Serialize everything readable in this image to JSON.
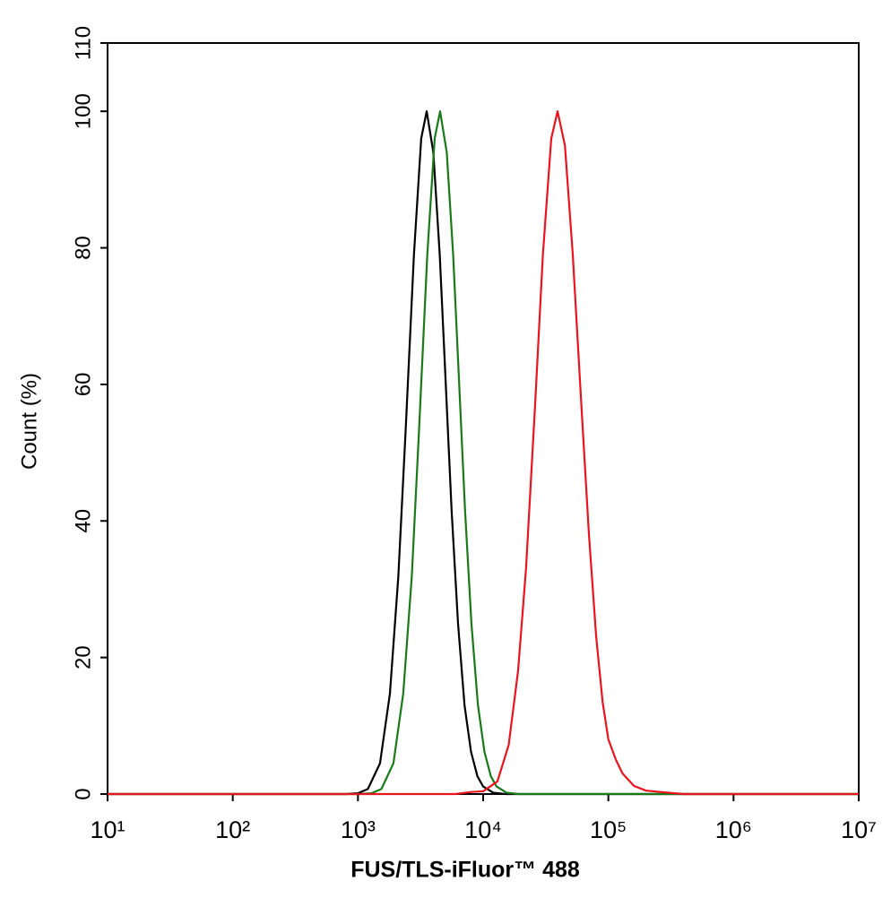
{
  "chart_data": {
    "type": "line",
    "xlabel": "FUS/TLS-iFluor™ 488",
    "ylabel": "Count  (%)",
    "xscale": "log",
    "xlim": [
      10,
      10000000
    ],
    "xticks": [
      {
        "value": 10,
        "label": "10¹"
      },
      {
        "value": 100,
        "label": "10²"
      },
      {
        "value": 1000,
        "label": "10³"
      },
      {
        "value": 10000,
        "label": "10⁴"
      },
      {
        "value": 100000,
        "label": "10⁵"
      },
      {
        "value": 1000000,
        "label": "10⁶"
      },
      {
        "value": 10000000,
        "label": "10⁷"
      }
    ],
    "ylim": [
      0,
      110
    ],
    "yticks": [
      0,
      20,
      40,
      60,
      80,
      100,
      110
    ],
    "grid": false,
    "series": [
      {
        "color": "#000000",
        "x": [
          10,
          800,
          1000,
          1200,
          1500,
          1800,
          2100,
          2400,
          2800,
          3200,
          3540,
          4000,
          4500,
          5000,
          5600,
          6300,
          7100,
          8000,
          9000,
          10000,
          12000,
          15000,
          10000000
        ],
        "values": [
          0,
          0,
          0.12,
          0.74,
          4.5,
          14.7,
          31.8,
          53,
          79,
          96,
          100,
          94,
          79,
          61,
          41.5,
          25,
          13,
          6.2,
          2.6,
          1.1,
          0.2,
          0,
          0
        ]
      },
      {
        "color": "#1a7a1a",
        "x": [
          10,
          1020,
          1280,
          1540,
          1920,
          2300,
          2690,
          3070,
          3580,
          4100,
          4530,
          5120,
          5760,
          6400,
          7170,
          8060,
          9090,
          10240,
          11520,
          12800,
          15360,
          19200,
          10000000
        ],
        "values": [
          0,
          0,
          0.12,
          0.74,
          4.5,
          14.7,
          31.8,
          53,
          79,
          96,
          100,
          94,
          79,
          61,
          41.5,
          25,
          13,
          6.2,
          2.6,
          1.1,
          0.2,
          0,
          0
        ]
      },
      {
        "color": "#e8141e",
        "x": [
          10,
          6000,
          8000,
          10000,
          13000,
          16000,
          19000,
          22000,
          26000,
          30000,
          35000,
          39300,
          45000,
          52000,
          60000,
          70000,
          80000,
          90000,
          100000,
          115000,
          130000,
          160000,
          200000,
          300000,
          400000,
          10000000
        ],
        "values": [
          0,
          0,
          0.3,
          0.4,
          1.85,
          7.2,
          18,
          33,
          57,
          79,
          96,
          100,
          95,
          79,
          59,
          38,
          23,
          13.5,
          8,
          5,
          3,
          1.2,
          0.5,
          0.2,
          0,
          0
        ]
      }
    ]
  }
}
